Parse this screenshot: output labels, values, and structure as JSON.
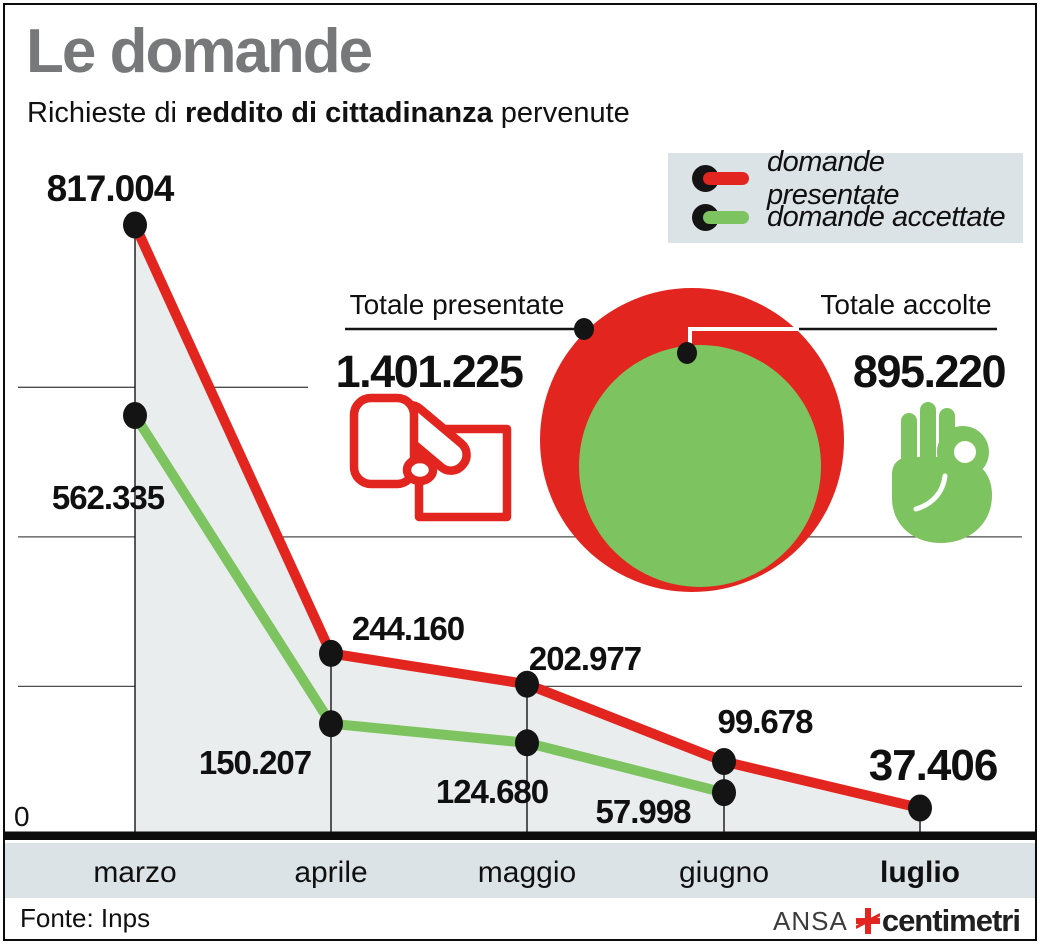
{
  "header": {
    "title": "Le domande",
    "subtitle": {
      "prefix": "Richieste di ",
      "bold": "reddito di cittadinanza",
      "suffix": " pervenute"
    }
  },
  "legend": {
    "items": [
      {
        "label": "domande presentate",
        "color": "#e2251e"
      },
      {
        "label": "domande accettate",
        "color": "#7dc35f"
      }
    ]
  },
  "totals": {
    "presented": {
      "label": "Totale presentate",
      "value": "1.401.225"
    },
    "accepted": {
      "label": "Totale accolte",
      "value": "895.220"
    }
  },
  "chart_data": {
    "type": "line",
    "title": "Richieste di reddito di cittadinanza pervenute",
    "categories": [
      "marzo",
      "aprile",
      "maggio",
      "giugno",
      "luglio"
    ],
    "series": [
      {
        "name": "domande presentate",
        "color": "#e2251e",
        "values": [
          817004,
          244160,
          202977,
          99678,
          37406
        ],
        "labels": [
          "817.004",
          "244.160",
          "202.977",
          "99.678",
          "37.406"
        ]
      },
      {
        "name": "domande accettate",
        "color": "#7dc35f",
        "values": [
          562335,
          150207,
          124680,
          57998,
          null
        ],
        "labels": [
          "562.335",
          "150.207",
          "124.680",
          "57.998",
          null
        ]
      }
    ],
    "totals": {
      "presentate": 1401225,
      "accolte": 895220
    },
    "ylim": [
      0,
      850000
    ],
    "gridline_values": [
      200000,
      400000,
      600000
    ],
    "zero_label": "0",
    "grid": true,
    "legend_position": "top-right",
    "area_fill_under": "domande presentate"
  },
  "footer": {
    "source": "Fonte: Inps",
    "agency": "ANSA",
    "brand": "centimetri"
  },
  "colors": {
    "red": "#e2251e",
    "green": "#7dc35f",
    "area_fill": "#e9edee",
    "band_bg": "#dce3e7",
    "title_gray": "#76787a",
    "text": "#101010"
  }
}
